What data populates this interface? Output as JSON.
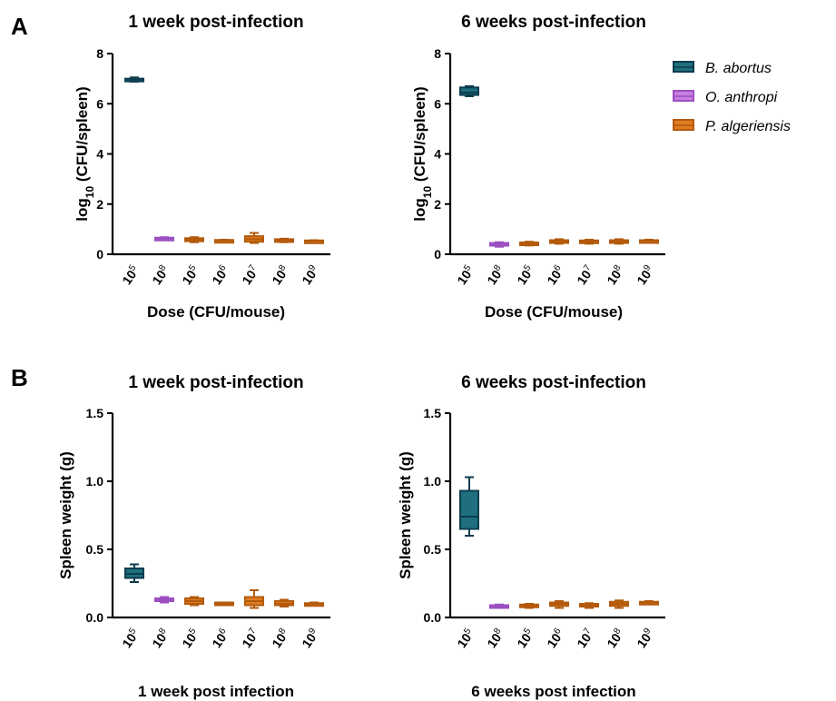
{
  "panels": {
    "A": "A",
    "B": "B"
  },
  "legend": [
    {
      "label": "B. abortus",
      "fill": "#1f6f7f",
      "stroke": "#0d3d4f"
    },
    {
      "label": "O. anthropi",
      "fill": "#c77ee0",
      "stroke": "#9b4fc0"
    },
    {
      "label": "P. algeriensis",
      "fill": "#e07b20",
      "stroke": "#b35a0c"
    }
  ],
  "chart_data": [
    {
      "type": "box",
      "panel": "A",
      "title": "1 week post-infection",
      "ylabel_main": "log",
      "ylabel_sub": "10",
      "ylabel_rest": " (CFU/spleen)",
      "xlabel": "Dose (CFU/mouse)",
      "ylim": [
        0,
        8
      ],
      "yticks": [
        "0",
        "2",
        "4",
        "6",
        "8"
      ],
      "categories": [
        {
          "base": "10",
          "exp": "5",
          "species": 0
        },
        {
          "base": "10",
          "exp": "8",
          "species": 1
        },
        {
          "base": "10",
          "exp": "5",
          "species": 2
        },
        {
          "base": "10",
          "exp": "6",
          "species": 2
        },
        {
          "base": "10",
          "exp": "7",
          "species": 2
        },
        {
          "base": "10",
          "exp": "8",
          "species": 2
        },
        {
          "base": "10",
          "exp": "9",
          "species": 2
        }
      ],
      "boxes": [
        {
          "min": 6.88,
          "q1": 6.92,
          "median": 6.97,
          "q3": 7.0,
          "max": 7.05
        },
        {
          "min": 0.58,
          "q1": 0.6,
          "median": 0.62,
          "q3": 0.66,
          "max": 0.68
        },
        {
          "min": 0.48,
          "q1": 0.52,
          "median": 0.58,
          "q3": 0.64,
          "max": 0.68
        },
        {
          "min": 0.5,
          "q1": 0.52,
          "median": 0.55,
          "q3": 0.57,
          "max": 0.58
        },
        {
          "min": 0.45,
          "q1": 0.5,
          "median": 0.6,
          "q3": 0.72,
          "max": 0.85
        },
        {
          "min": 0.48,
          "q1": 0.52,
          "median": 0.55,
          "q3": 0.6,
          "max": 0.62
        },
        {
          "min": 0.5,
          "q1": 0.52,
          "median": 0.53,
          "q3": 0.55,
          "max": 0.56
        }
      ]
    },
    {
      "type": "box",
      "panel": "A",
      "title": "6 weeks post-infection",
      "ylabel_main": "log",
      "ylabel_sub": "10",
      "ylabel_rest": " (CFU/spleen)",
      "xlabel": "Dose (CFU/mouse)",
      "ylim": [
        0,
        8
      ],
      "yticks": [
        "0",
        "2",
        "4",
        "6",
        "8"
      ],
      "categories": [
        {
          "base": "10",
          "exp": "5",
          "species": 0
        },
        {
          "base": "10",
          "exp": "8",
          "species": 1
        },
        {
          "base": "10",
          "exp": "5",
          "species": 2
        },
        {
          "base": "10",
          "exp": "6",
          "species": 2
        },
        {
          "base": "10",
          "exp": "7",
          "species": 2
        },
        {
          "base": "10",
          "exp": "8",
          "species": 2
        },
        {
          "base": "10",
          "exp": "9",
          "species": 2
        }
      ],
      "boxes": [
        {
          "min": 6.3,
          "q1": 6.35,
          "median": 6.45,
          "q3": 6.65,
          "max": 6.7
        },
        {
          "min": 0.3,
          "q1": 0.35,
          "median": 0.4,
          "q3": 0.45,
          "max": 0.48
        },
        {
          "min": 0.35,
          "q1": 0.38,
          "median": 0.42,
          "q3": 0.47,
          "max": 0.5
        },
        {
          "min": 0.42,
          "q1": 0.45,
          "median": 0.5,
          "q3": 0.56,
          "max": 0.6
        },
        {
          "min": 0.42,
          "q1": 0.45,
          "median": 0.5,
          "q3": 0.55,
          "max": 0.58
        },
        {
          "min": 0.42,
          "q1": 0.45,
          "median": 0.5,
          "q3": 0.56,
          "max": 0.6
        },
        {
          "min": 0.5,
          "q1": 0.52,
          "median": 0.54,
          "q3": 0.56,
          "max": 0.58
        }
      ]
    },
    {
      "type": "box",
      "panel": "B",
      "title": "1 week post-infection",
      "ylabel": "Spleen weight (g)",
      "xlabel": "1 week post infection",
      "ylim": [
        0,
        1.5
      ],
      "yticks": [
        "0.0",
        "0.5",
        "1.0",
        "1.5"
      ],
      "categories": [
        {
          "base": "10",
          "exp": "5",
          "species": 0
        },
        {
          "base": "10",
          "exp": "8",
          "species": 1
        },
        {
          "base": "10",
          "exp": "5",
          "species": 2
        },
        {
          "base": "10",
          "exp": "6",
          "species": 2
        },
        {
          "base": "10",
          "exp": "7",
          "species": 2
        },
        {
          "base": "10",
          "exp": "8",
          "species": 2
        },
        {
          "base": "10",
          "exp": "9",
          "species": 2
        }
      ],
      "boxes": [
        {
          "min": 0.26,
          "q1": 0.29,
          "median": 0.32,
          "q3": 0.36,
          "max": 0.39
        },
        {
          "min": 0.11,
          "q1": 0.12,
          "median": 0.13,
          "q3": 0.14,
          "max": 0.15
        },
        {
          "min": 0.09,
          "q1": 0.1,
          "median": 0.12,
          "q3": 0.14,
          "max": 0.15
        },
        {
          "min": 0.09,
          "q1": 0.095,
          "median": 0.1,
          "q3": 0.11,
          "max": 0.11
        },
        {
          "min": 0.07,
          "q1": 0.09,
          "median": 0.12,
          "q3": 0.15,
          "max": 0.2
        },
        {
          "min": 0.08,
          "q1": 0.09,
          "median": 0.1,
          "q3": 0.12,
          "max": 0.13
        },
        {
          "min": 0.095,
          "q1": 0.097,
          "median": 0.1,
          "q3": 0.105,
          "max": 0.11
        }
      ]
    },
    {
      "type": "box",
      "panel": "B",
      "title": "6 weeks post-infection",
      "ylabel": "Spleen weight (g)",
      "xlabel": "6 weeks post infection",
      "ylim": [
        0,
        1.5
      ],
      "yticks": [
        "0.0",
        "0.5",
        "1.0",
        "1.5"
      ],
      "categories": [
        {
          "base": "10",
          "exp": "5",
          "species": 0
        },
        {
          "base": "10",
          "exp": "8",
          "species": 1
        },
        {
          "base": "10",
          "exp": "5",
          "species": 2
        },
        {
          "base": "10",
          "exp": "6",
          "species": 2
        },
        {
          "base": "10",
          "exp": "7",
          "species": 2
        },
        {
          "base": "10",
          "exp": "8",
          "species": 2
        },
        {
          "base": "10",
          "exp": "9",
          "species": 2
        }
      ],
      "boxes": [
        {
          "min": 0.6,
          "q1": 0.65,
          "median": 0.74,
          "q3": 0.93,
          "max": 1.03
        },
        {
          "min": 0.07,
          "q1": 0.075,
          "median": 0.08,
          "q3": 0.09,
          "max": 0.095
        },
        {
          "min": 0.07,
          "q1": 0.077,
          "median": 0.085,
          "q3": 0.095,
          "max": 0.1
        },
        {
          "min": 0.07,
          "q1": 0.085,
          "median": 0.1,
          "q3": 0.11,
          "max": 0.12
        },
        {
          "min": 0.07,
          "q1": 0.08,
          "median": 0.09,
          "q3": 0.1,
          "max": 0.105
        },
        {
          "min": 0.07,
          "q1": 0.085,
          "median": 0.1,
          "q3": 0.115,
          "max": 0.125
        },
        {
          "min": 0.105,
          "q1": 0.108,
          "median": 0.11,
          "q3": 0.115,
          "max": 0.12
        }
      ]
    }
  ]
}
